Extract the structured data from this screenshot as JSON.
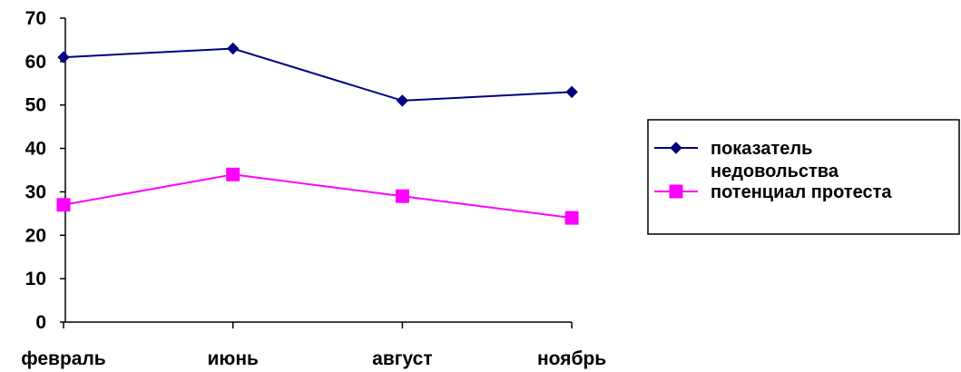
{
  "chart_data": {
    "type": "line",
    "categories": [
      "февраль",
      "июнь",
      "август",
      "ноябрь"
    ],
    "ylim": [
      0,
      70
    ],
    "yticks": [
      0,
      10,
      20,
      30,
      40,
      50,
      60,
      70
    ],
    "grid": false,
    "legend_position": "right",
    "series": [
      {
        "name": "показатель недовольства",
        "name_lines": [
          "показатель",
          "недовольства"
        ],
        "values": [
          61,
          63,
          51,
          53
        ],
        "color": "#000080",
        "marker": "diamond"
      },
      {
        "name": "потенциал протеста",
        "name_lines": [
          "потенциал протеста"
        ],
        "values": [
          27,
          34,
          29,
          24
        ],
        "color": "#ff00ff",
        "marker": "square"
      }
    ]
  }
}
